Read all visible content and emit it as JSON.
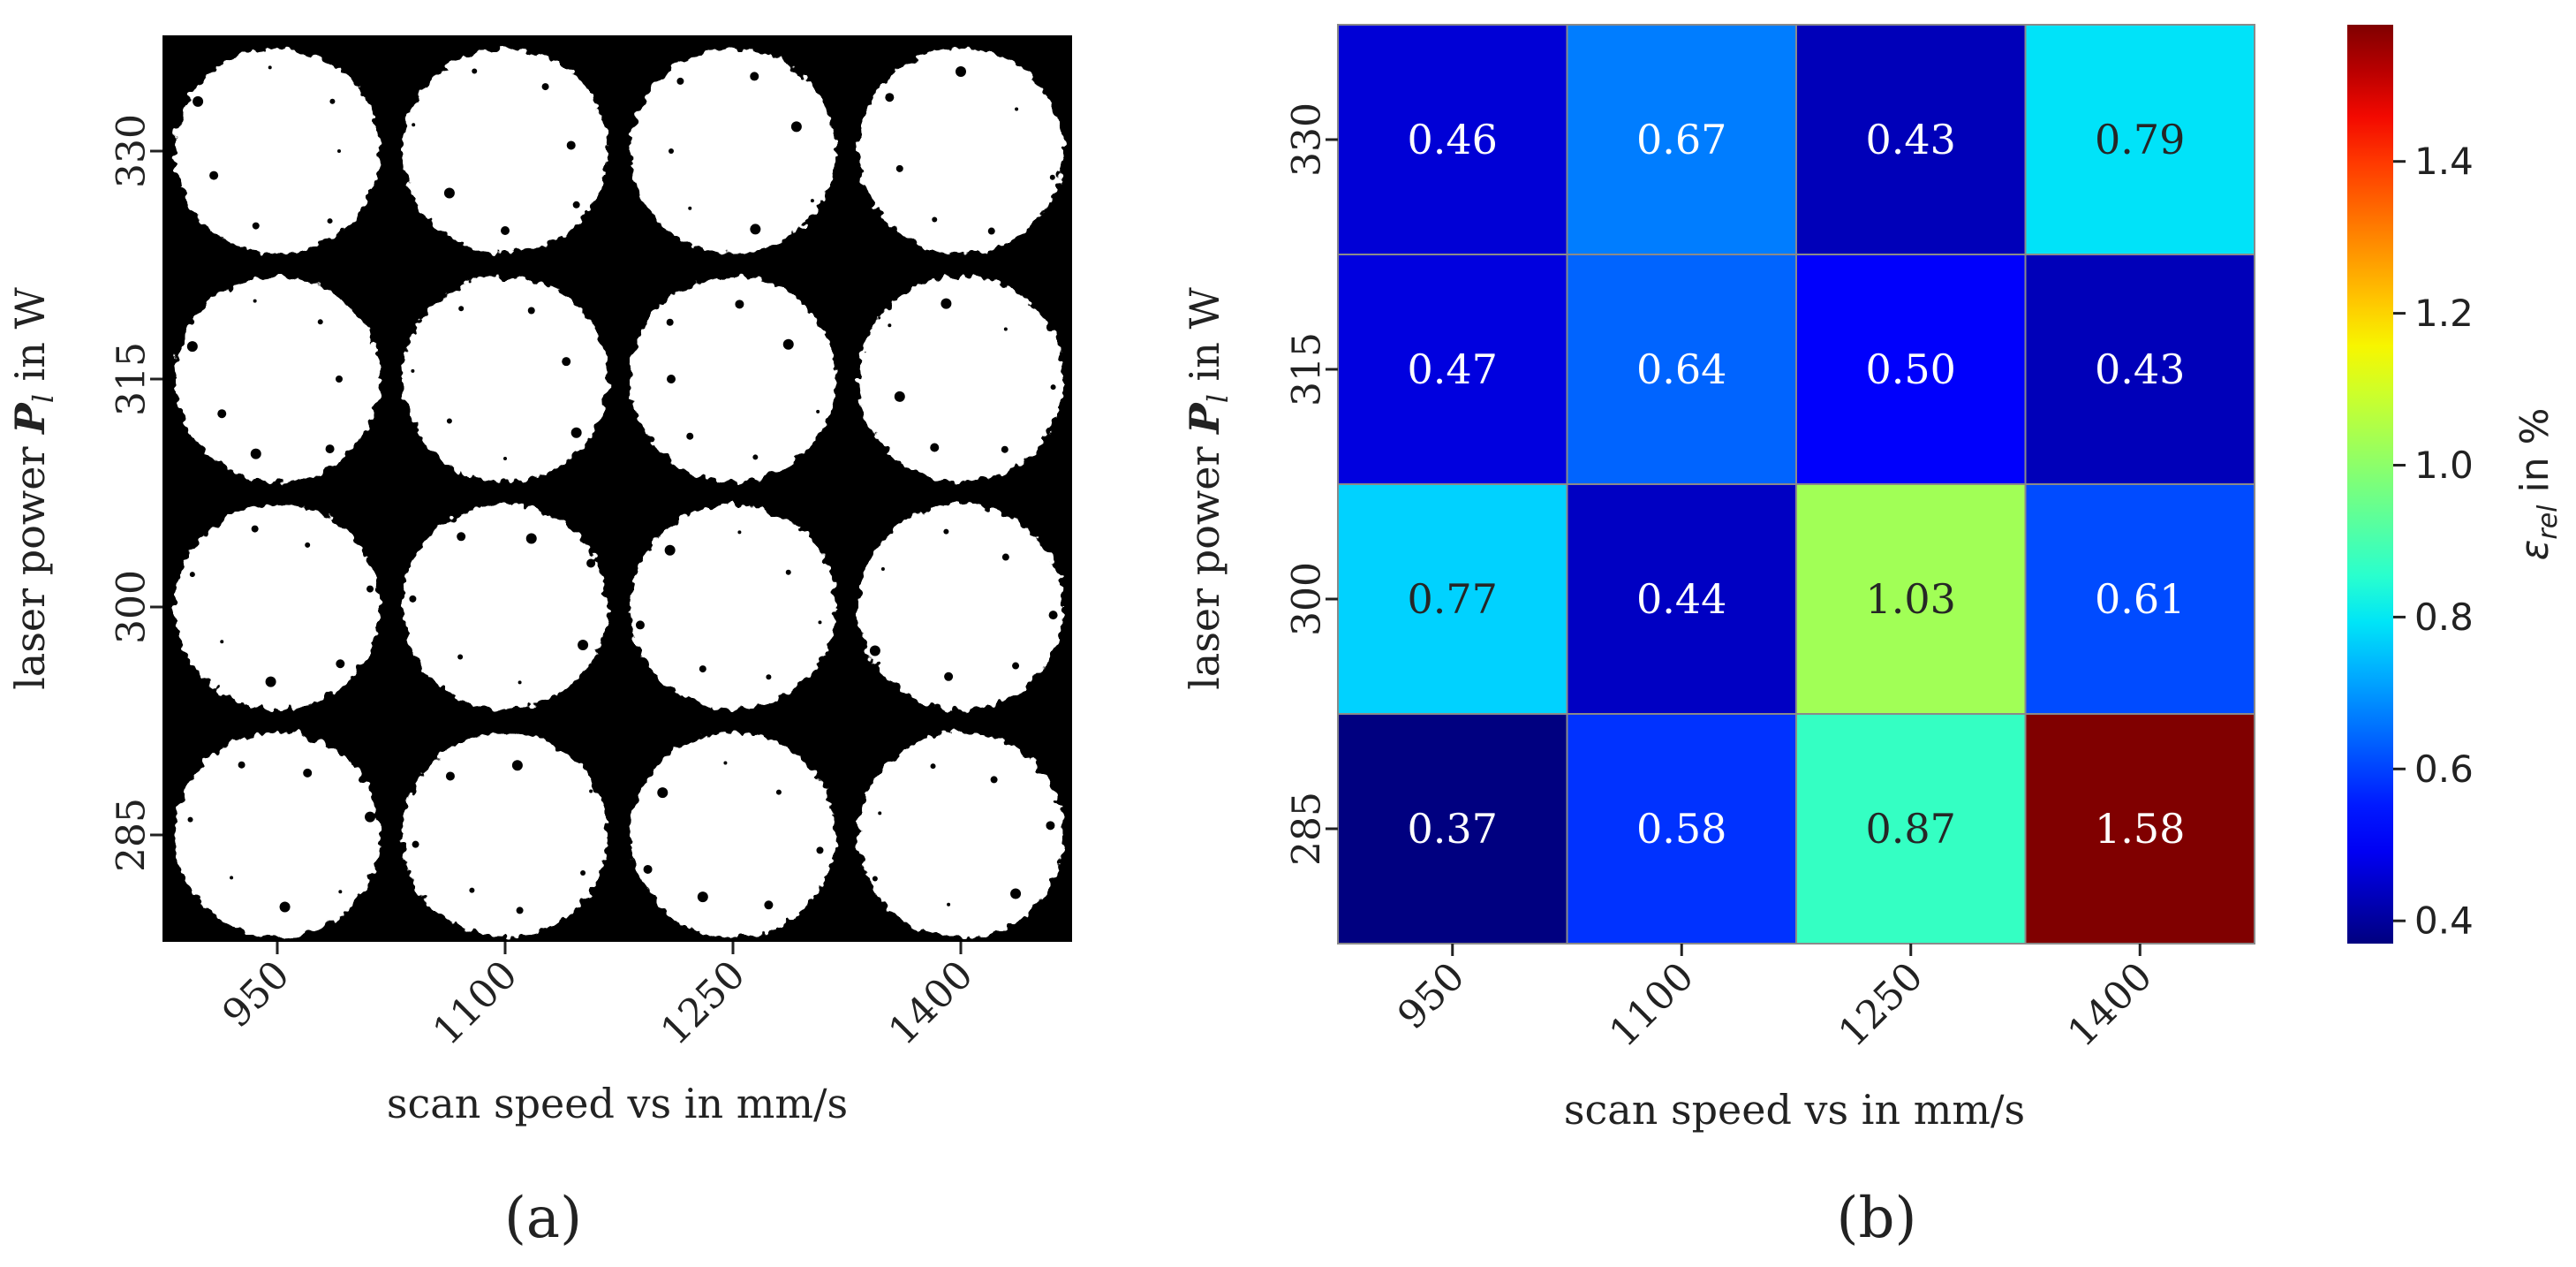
{
  "chart_data": [
    {
      "panel": "a",
      "type": "image",
      "panel_label": "(a)",
      "xlabel": "scan speed vs in mm/s",
      "ylabel_parts": [
        "laser power ",
        "P",
        "l",
        " in W"
      ],
      "categories": [
        "950",
        "1100",
        "1250",
        "1400"
      ],
      "rows": [
        "330",
        "315",
        "300",
        "285"
      ]
    },
    {
      "panel": "b",
      "type": "heatmap",
      "panel_label": "(b)",
      "xlabel": "scan speed vs in mm/s",
      "ylabel_parts": [
        "laser power ",
        "P",
        "l",
        " in W"
      ],
      "categories": [
        "950",
        "1100",
        "1250",
        "1400"
      ],
      "rows": [
        "330",
        "315",
        "300",
        "285"
      ],
      "values": [
        [
          0.46,
          0.67,
          0.43,
          0.79
        ],
        [
          0.47,
          0.64,
          0.5,
          0.43
        ],
        [
          0.77,
          0.44,
          1.03,
          0.61
        ],
        [
          0.37,
          0.58,
          0.87,
          1.58
        ]
      ],
      "labels": [
        [
          "0.46",
          "0.67",
          "0.43",
          "0.79"
        ],
        [
          "0.47",
          "0.64",
          "0.50",
          "0.43"
        ],
        [
          "0.77",
          "0.44",
          "1.03",
          "0.61"
        ],
        [
          "0.37",
          "0.58",
          "0.87",
          "1.58"
        ]
      ],
      "colormap": "jet",
      "vmin": 0.37,
      "vmax": 1.58,
      "colorbar": {
        "label_parts": [
          "ε",
          "rel",
          " in %"
        ],
        "ticks": [
          0.4,
          0.6,
          0.8,
          1.0,
          1.2,
          1.4
        ],
        "tick_labels": [
          "0.4",
          "0.6",
          "0.8",
          "1.0",
          "1.2",
          "1.4"
        ]
      }
    }
  ]
}
